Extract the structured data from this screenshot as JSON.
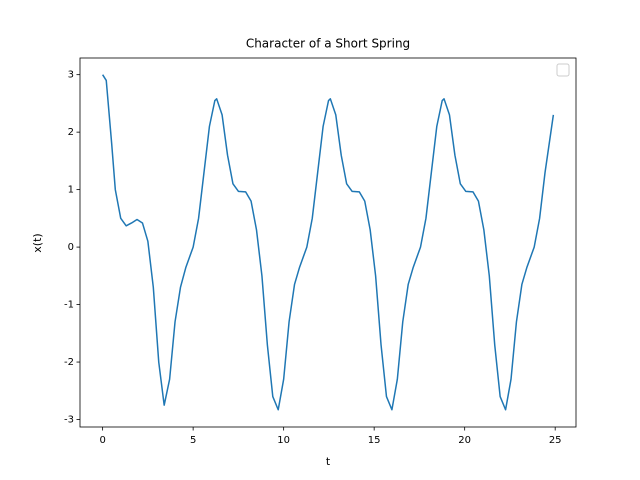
{
  "chart_data": {
    "type": "line",
    "title": "Character of a Short Spring",
    "x_label": "t",
    "y_label": "x(t)",
    "x": [
      0,
      0.2,
      0.5,
      0.7,
      1.0,
      1.3,
      1.6,
      1.9,
      2.2,
      2.5,
      2.8,
      3.1,
      3.4,
      3.7,
      4.0,
      4.3,
      4.6,
      5.0,
      5.3,
      5.6,
      5.9,
      6.2,
      6.3,
      6.6,
      6.9,
      7.2,
      7.5,
      7.9,
      8.2,
      8.5,
      8.8,
      9.1,
      9.4,
      9.7,
      10.0,
      10.3,
      10.6,
      10.88,
      11.28,
      11.58,
      11.88,
      12.18,
      12.48,
      12.58,
      12.88,
      13.18,
      13.48,
      13.78,
      14.18,
      14.48,
      14.78,
      15.08,
      15.38,
      15.68,
      15.98,
      16.28,
      16.58,
      16.88,
      17.16,
      17.56,
      17.86,
      18.16,
      18.46,
      18.76,
      18.86,
      19.16,
      19.46,
      19.76,
      20.06,
      20.46,
      20.76,
      21.06,
      21.36,
      21.66,
      21.96,
      22.26,
      22.56,
      22.86,
      23.16,
      23.44,
      23.84,
      24.14,
      24.44,
      24.9
    ],
    "values": [
      3.0,
      2.9,
      1.8,
      1.0,
      0.5,
      0.37,
      0.42,
      0.48,
      0.42,
      0.1,
      -0.7,
      -2.0,
      -2.75,
      -2.3,
      -1.3,
      -0.7,
      -0.35,
      0.0,
      0.5,
      1.3,
      2.1,
      2.55,
      2.58,
      2.3,
      1.6,
      1.1,
      0.97,
      0.96,
      0.8,
      0.3,
      -0.5,
      -1.7,
      -2.6,
      -2.83,
      -2.3,
      -1.3,
      -0.65,
      -0.35,
      0.0,
      0.5,
      1.3,
      2.1,
      2.55,
      2.58,
      2.3,
      1.6,
      1.1,
      0.97,
      0.96,
      0.8,
      0.3,
      -0.5,
      -1.7,
      -2.6,
      -2.83,
      -2.3,
      -1.3,
      -0.65,
      -0.35,
      0.0,
      0.5,
      1.3,
      2.1,
      2.55,
      2.58,
      2.3,
      1.6,
      1.1,
      0.97,
      0.96,
      0.8,
      0.3,
      -0.5,
      -1.7,
      -2.6,
      -2.83,
      -2.3,
      -1.3,
      -0.65,
      -0.35,
      0.0,
      0.5,
      1.3,
      2.3
    ],
    "color": "#1f77b4",
    "xlim": [
      -1.25,
      26.15
    ],
    "xticks": [
      0,
      5,
      10,
      15,
      20,
      25
    ],
    "ylim": [
      -3.13,
      3.29
    ],
    "yticks": [
      -3,
      -2,
      -1,
      0,
      1,
      2,
      3
    ]
  }
}
